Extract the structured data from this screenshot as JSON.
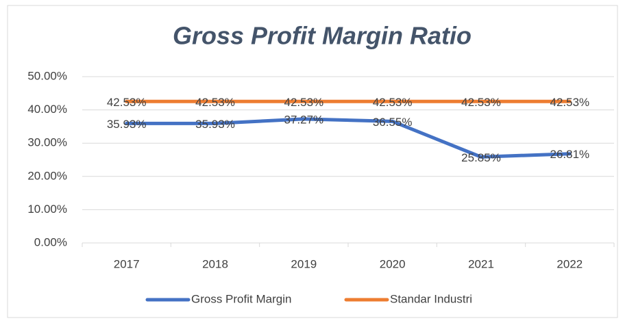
{
  "chart_data": {
    "type": "line",
    "title": "Gross Profit Margin Ratio",
    "categories": [
      "2017",
      "2018",
      "2019",
      "2020",
      "2021",
      "2022"
    ],
    "series": [
      {
        "name": "Gross Profit Margin",
        "color": "#4472c4",
        "values": [
          35.93,
          35.93,
          37.27,
          36.55,
          25.85,
          26.81
        ],
        "value_labels": [
          "35.93%",
          "35.93%",
          "37.27%",
          "36.55%",
          "25.85%",
          "26.81%"
        ]
      },
      {
        "name": "Standar Industri",
        "color": "#ed7d31",
        "values": [
          42.53,
          42.53,
          42.53,
          42.53,
          42.53,
          42.53
        ],
        "value_labels": [
          "42.53%",
          "42.53%",
          "42.53%",
          "42.53%",
          "42.53%",
          "42.53%"
        ]
      }
    ],
    "ylim": [
      0,
      50
    ],
    "yticks": [
      {
        "value": 0,
        "label": "0.00%"
      },
      {
        "value": 10,
        "label": "10.00%"
      },
      {
        "value": 20,
        "label": "20.00%"
      },
      {
        "value": 30,
        "label": "30.00%"
      },
      {
        "value": 40,
        "label": "40.00%"
      },
      {
        "value": 50,
        "label": "50.00%"
      }
    ],
    "grid": true,
    "legend": "bottom"
  }
}
